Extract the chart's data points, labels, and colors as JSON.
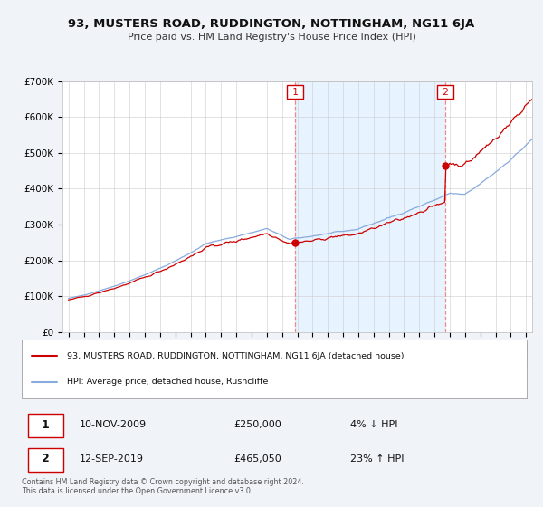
{
  "title": "93, MUSTERS ROAD, RUDDINGTON, NOTTINGHAM, NG11 6JA",
  "subtitle": "Price paid vs. HM Land Registry's House Price Index (HPI)",
  "ylim": [
    0,
    700000
  ],
  "yticks": [
    0,
    100000,
    200000,
    300000,
    400000,
    500000,
    600000,
    700000
  ],
  "ytick_labels": [
    "£0",
    "£100K",
    "£200K",
    "£300K",
    "£400K",
    "£500K",
    "£600K",
    "£700K"
  ],
  "xlim_start": 1994.6,
  "xlim_end": 2025.4,
  "line_color_price": "#cc0000",
  "line_color_hpi": "#88aadd",
  "shade_color": "#ddeeff",
  "sale1_year": 2009.87,
  "sale1_price": 250000,
  "sale1_label": "10-NOV-2009",
  "sale1_amount": "£250,000",
  "sale1_pct": "4% ↓ HPI",
  "sale2_year": 2019.72,
  "sale2_price": 465050,
  "sale2_label": "12-SEP-2019",
  "sale2_amount": "£465,050",
  "sale2_pct": "23% ↑ HPI",
  "legend_line1": "93, MUSTERS ROAD, RUDDINGTON, NOTTINGHAM, NG11 6JA (detached house)",
  "legend_line2": "HPI: Average price, detached house, Rushcliffe",
  "footnote": "Contains HM Land Registry data © Crown copyright and database right 2024.\nThis data is licensed under the Open Government Licence v3.0.",
  "background_color": "#f0f4f8",
  "plot_bg_color": "#ffffff",
  "grid_color": "#cccccc"
}
